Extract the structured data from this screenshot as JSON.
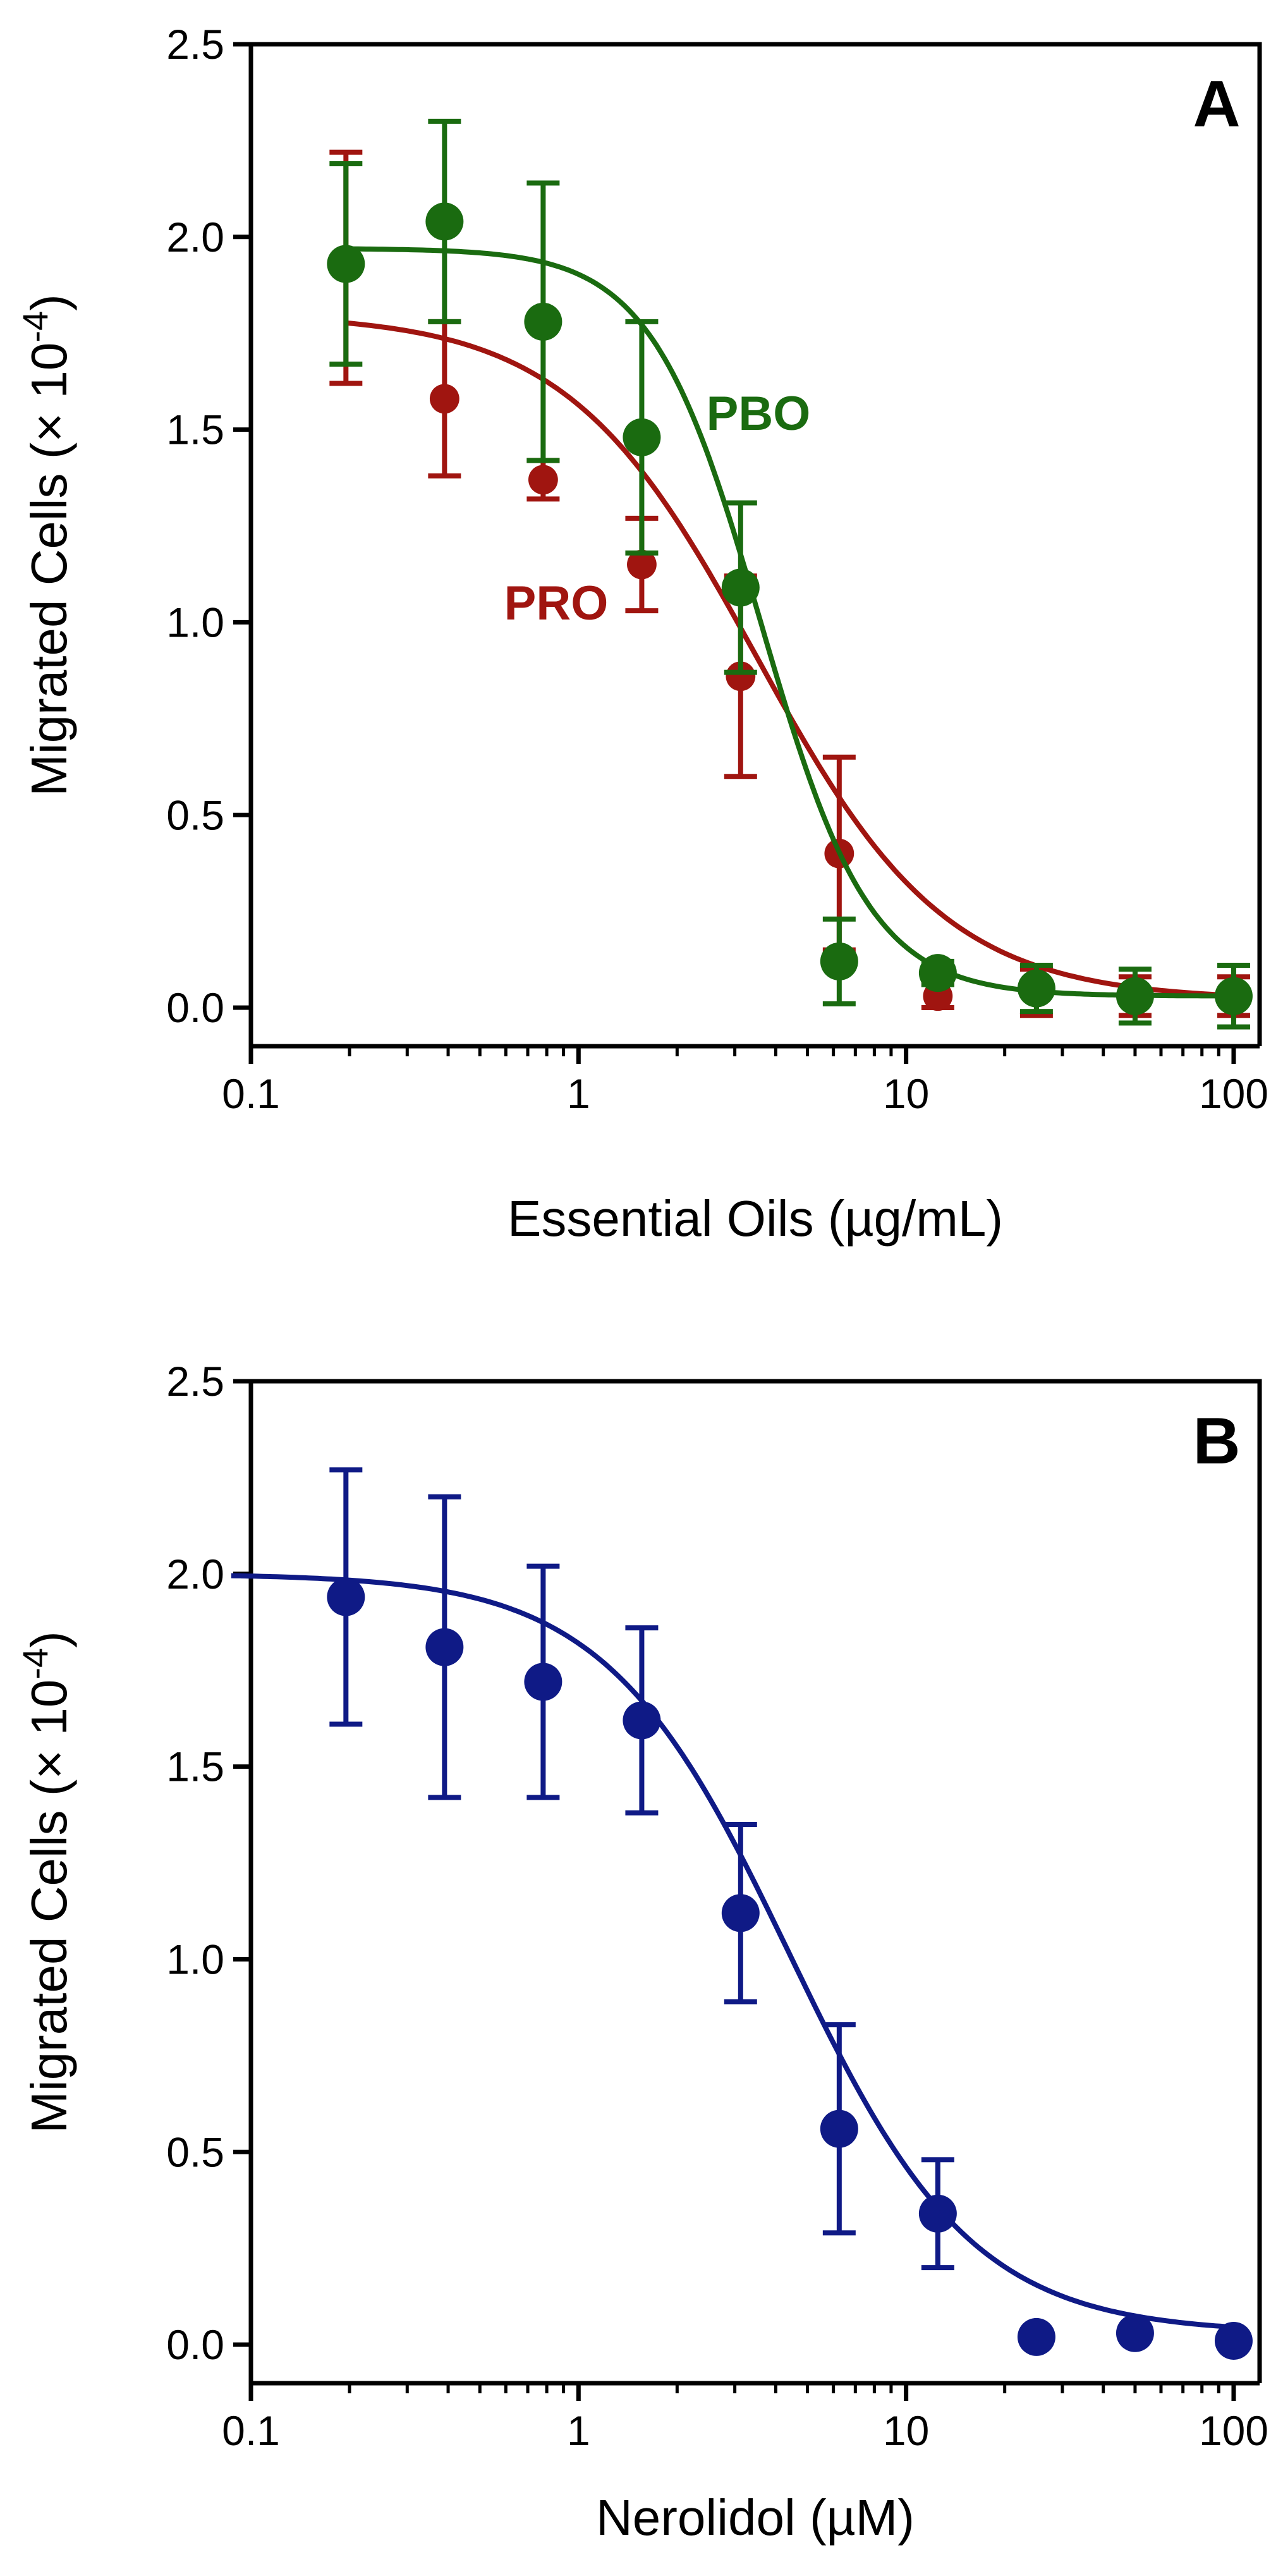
{
  "chart_data": [
    {
      "type": "scatter",
      "panel_label": "A",
      "xlabel": "Essential Oils (µg/mL)",
      "ylabel": "Migrated Cells (× 10",
      "ylabel_exp": "-4",
      "ylabel_close": ")",
      "xscale": "log",
      "xlim": [
        0.1,
        120
      ],
      "ylim": [
        -0.1,
        2.5
      ],
      "xticks": [
        0.1,
        1,
        10,
        100
      ],
      "xtick_labels": [
        "0.1",
        "1",
        "10",
        "100"
      ],
      "yticks": [
        0.0,
        0.5,
        1.0,
        1.5,
        2.0,
        2.5
      ],
      "ytick_labels": [
        "0.0",
        "0.5",
        "1.0",
        "1.5",
        "2.0",
        "2.5"
      ],
      "grid": false,
      "series": [
        {
          "name": "PRO",
          "color": "#a01510",
          "marker_scale": 0.78,
          "x": [
            0.195,
            0.39,
            0.78,
            1.56,
            3.125,
            6.25,
            12.5,
            25,
            50,
            100
          ],
          "y": [
            1.92,
            1.58,
            1.37,
            1.15,
            0.86,
            0.4,
            0.03,
            0.04,
            0.03,
            0.03
          ],
          "error": [
            0.3,
            0.2,
            0.05,
            0.12,
            0.26,
            0.25,
            0.03,
            0.06,
            0.05,
            0.05
          ],
          "fit": {
            "top": 1.8,
            "bottom": 0.02,
            "ec50": 3.5,
            "hill": 1.5
          }
        },
        {
          "name": "PBO",
          "color": "#1a6b10",
          "marker_scale": 1.0,
          "x": [
            0.195,
            0.39,
            0.78,
            1.56,
            3.125,
            6.25,
            12.5,
            25,
            50,
            100
          ],
          "y": [
            1.93,
            2.04,
            1.78,
            1.48,
            1.09,
            0.12,
            0.09,
            0.05,
            0.03,
            0.03
          ],
          "error": [
            0.26,
            0.26,
            0.36,
            0.3,
            0.22,
            0.11,
            0.03,
            0.06,
            0.07,
            0.08
          ],
          "fit": {
            "top": 1.97,
            "bottom": 0.03,
            "ec50": 3.6,
            "hill": 2.6
          }
        }
      ]
    },
    {
      "type": "scatter",
      "panel_label": "B",
      "xlabel": "Nerolidol (µM)",
      "ylabel": "Migrated Cells (× 10",
      "ylabel_exp": "-4",
      "ylabel_close": ")",
      "xscale": "log",
      "xlim": [
        0.1,
        120
      ],
      "ylim": [
        -0.1,
        2.5
      ],
      "xticks": [
        0.1,
        1,
        10,
        100
      ],
      "xtick_labels": [
        "0.1",
        "1",
        "10",
        "100"
      ],
      "yticks": [
        0.0,
        0.5,
        1.0,
        1.5,
        2.0,
        2.5
      ],
      "ytick_labels": [
        "0.0",
        "0.5",
        "1.0",
        "1.5",
        "2.0",
        "2.5"
      ],
      "grid": false,
      "series": [
        {
          "color": "#0f1a86",
          "marker_scale": 1.0,
          "x": [
            0.195,
            0.39,
            0.78,
            1.56,
            3.125,
            6.25,
            12.5,
            25,
            50,
            100
          ],
          "y": [
            1.94,
            1.81,
            1.72,
            1.62,
            1.12,
            0.56,
            0.34,
            0.02,
            0.03,
            0.01
          ],
          "error": [
            0.33,
            0.39,
            0.3,
            0.24,
            0.23,
            0.27,
            0.14,
            0.0,
            0.0,
            0.0
          ],
          "fit": {
            "top": 2.0,
            "bottom": 0.03,
            "ec50": 4.4,
            "hill": 1.55
          }
        }
      ]
    }
  ]
}
